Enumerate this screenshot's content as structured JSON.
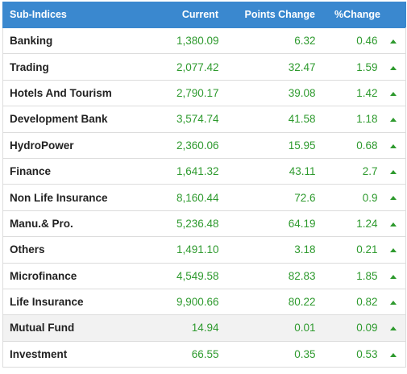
{
  "header": {
    "name": "Sub-Indices",
    "current": "Current",
    "points_change": "Points Change",
    "percent_change": "%Change"
  },
  "rows": [
    {
      "name": "Banking",
      "current": "1,380.09",
      "points": "6.32",
      "pct": "0.46",
      "trend_icon": "triangle-up-icon"
    },
    {
      "name": "Trading",
      "current": "2,077.42",
      "points": "32.47",
      "pct": "1.59",
      "trend_icon": "triangle-up-icon"
    },
    {
      "name": "Hotels And Tourism",
      "current": "2,790.17",
      "points": "39.08",
      "pct": "1.42",
      "trend_icon": "triangle-up-icon"
    },
    {
      "name": "Development Bank",
      "current": "3,574.74",
      "points": "41.58",
      "pct": "1.18",
      "trend_icon": "triangle-up-icon"
    },
    {
      "name": "HydroPower",
      "current": "2,360.06",
      "points": "15.95",
      "pct": "0.68",
      "trend_icon": "triangle-up-icon"
    },
    {
      "name": "Finance",
      "current": "1,641.32",
      "points": "43.11",
      "pct": "2.7",
      "trend_icon": "triangle-up-icon"
    },
    {
      "name": "Non Life Insurance",
      "current": "8,160.44",
      "points": "72.6",
      "pct": "0.9",
      "trend_icon": "triangle-up-icon"
    },
    {
      "name": "Manu.& Pro.",
      "current": "5,236.48",
      "points": "64.19",
      "pct": "1.24",
      "trend_icon": "triangle-up-icon"
    },
    {
      "name": "Others",
      "current": "1,491.10",
      "points": "3.18",
      "pct": "0.21",
      "trend_icon": "triangle-up-icon"
    },
    {
      "name": "Microfinance",
      "current": "4,549.58",
      "points": "82.83",
      "pct": "1.85",
      "trend_icon": "triangle-up-icon"
    },
    {
      "name": "Life Insurance",
      "current": "9,900.66",
      "points": "80.22",
      "pct": "0.82",
      "trend_icon": "triangle-up-icon"
    },
    {
      "name": "Mutual Fund",
      "current": "14.94",
      "points": "0.01",
      "pct": "0.09",
      "trend_icon": "triangle-up-icon"
    },
    {
      "name": "Investment",
      "current": "66.55",
      "points": "0.35",
      "pct": "0.53",
      "trend_icon": "triangle-up-icon"
    }
  ],
  "colors": {
    "header_bg": "#3a88cf",
    "header_text": "#ffffff",
    "positive": "#2e9a2e",
    "row_highlight": "#f2f2f2"
  }
}
